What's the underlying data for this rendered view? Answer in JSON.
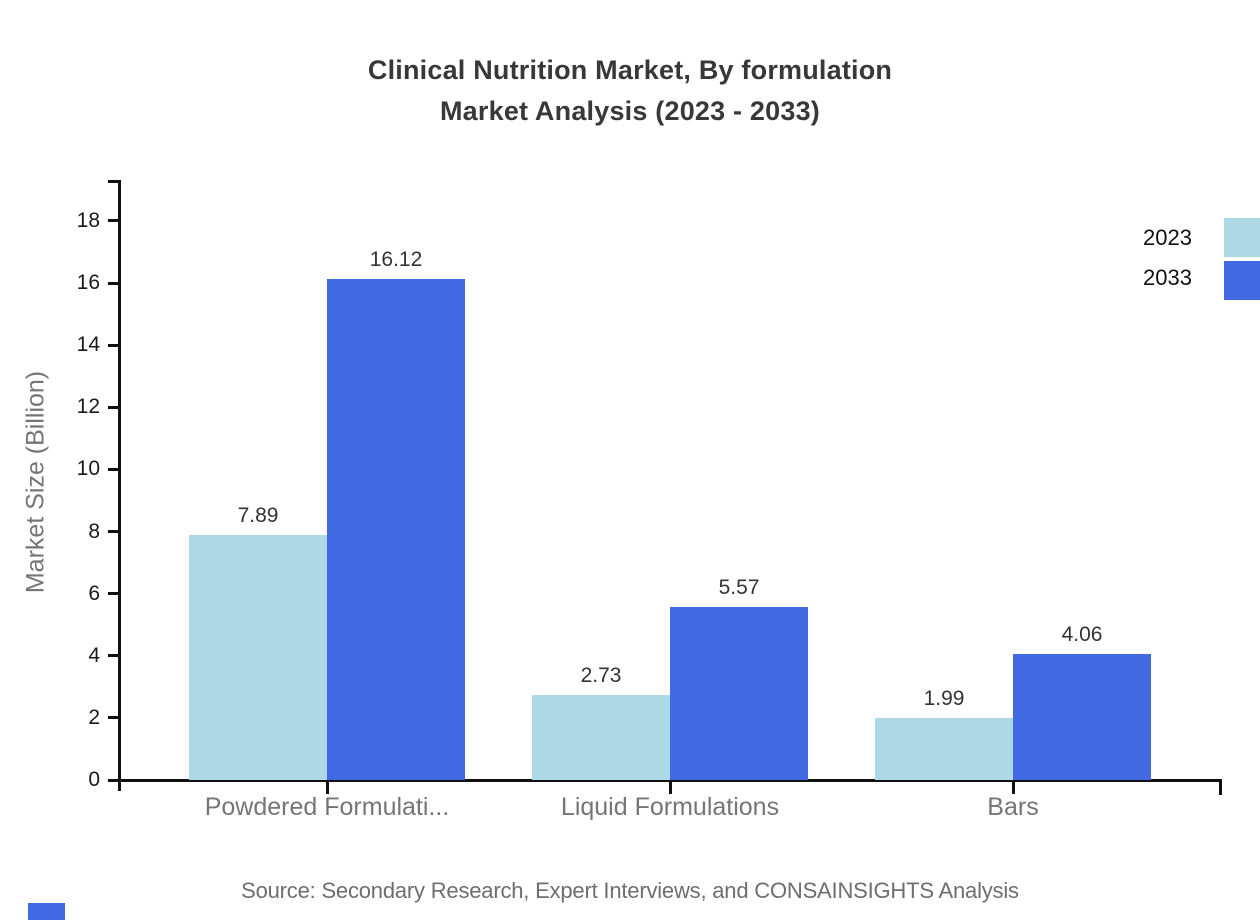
{
  "title": {
    "line1": "Clinical Nutrition Market, By formulation",
    "line2": "Market Analysis (2023 - 2033)"
  },
  "source_text": "Source: Secondary Research, Expert Interviews, and CONSAINSIGHTS Analysis",
  "legend": [
    {
      "label": "2023",
      "color": "#ADD8E6"
    },
    {
      "label": "2033",
      "color": "#4169E1"
    }
  ],
  "decor": {
    "corner_square_color": "#4169E1"
  },
  "chart_data": {
    "type": "bar",
    "title": "Clinical Nutrition Market, By formulation Market Analysis (2023 - 2033)",
    "categories": [
      "Powdered Formulati...",
      "Liquid Formulations",
      "Bars"
    ],
    "series": [
      {
        "name": "2023",
        "color": "#ADD8E6",
        "values": [
          7.89,
          2.73,
          1.99
        ]
      },
      {
        "name": "2033",
        "color": "#4169E1",
        "values": [
          16.12,
          5.57,
          4.06
        ]
      }
    ],
    "xlabel": "",
    "ylabel": "Market Size (Billion)",
    "ylim": [
      0,
      19
    ],
    "yticks": [
      0,
      2,
      4,
      6,
      8,
      10,
      12,
      14,
      16,
      18
    ],
    "grid": false,
    "legend_position": "top-right",
    "value_labels": true,
    "value_label_format": "0.00"
  }
}
